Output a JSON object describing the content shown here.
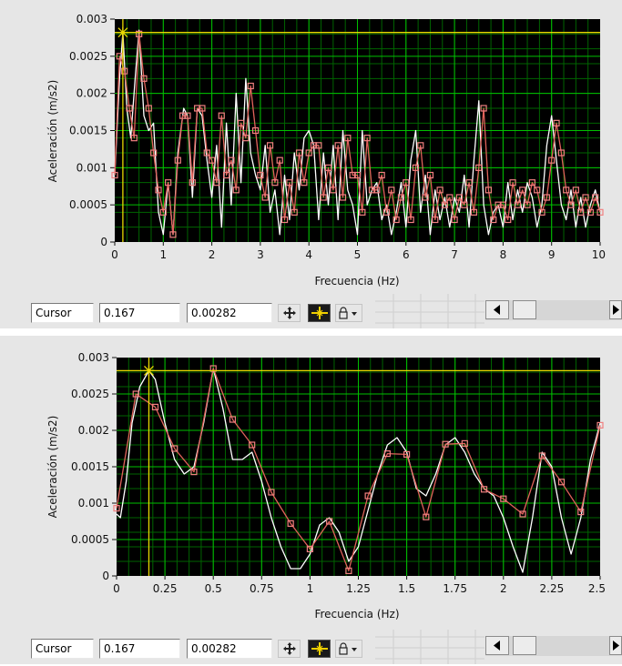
{
  "panels": [
    {
      "ylabel": "Aceleración (m/s2)",
      "xlabel": "Frecuencia (Hz)",
      "y_ticks": [
        "0",
        "0.0005",
        "0.001",
        "0.0015",
        "0.002",
        "0.0025",
        "0.003"
      ],
      "x_ticks": [
        "0",
        "1",
        "2",
        "3",
        "4",
        "5",
        "6",
        "7",
        "8",
        "9",
        "10"
      ],
      "cursor": {
        "label": "Cursor",
        "x_value": "0.167",
        "y_value": "0.00282"
      }
    },
    {
      "ylabel": "Aceleración (m/s2)",
      "xlabel": "Frecuencia (Hz)",
      "y_ticks": [
        "0",
        "0.0005",
        "0.001",
        "0.0015",
        "0.002",
        "0.0025",
        "0.003"
      ],
      "x_ticks": [
        "0",
        "0.25",
        "0.5",
        "0.75",
        "1",
        "1.25",
        "1.5",
        "1.75",
        "2",
        "2.25",
        "2.5"
      ],
      "cursor": {
        "label": "Cursor",
        "x_value": "0.167",
        "y_value": "0.00282"
      }
    }
  ],
  "chart_data": [
    {
      "type": "line",
      "xlabel": "Frecuencia (Hz)",
      "ylabel": "Aceleración (m/s2)",
      "xlim": [
        0,
        10
      ],
      "ylim": [
        0,
        0.003
      ],
      "grid": true,
      "cursor": {
        "x": 0.167,
        "y": 0.00282
      },
      "series": [
        {
          "color": "#ffffff",
          "x": [
            0,
            0.1,
            0.167,
            0.25,
            0.33,
            0.42,
            0.5,
            0.6,
            0.7,
            0.8,
            0.9,
            1,
            1.1,
            1.2,
            1.3,
            1.42,
            1.5,
            1.6,
            1.7,
            1.8,
            1.9,
            2,
            2.1,
            2.2,
            2.3,
            2.4,
            2.5,
            2.6,
            2.7,
            2.8,
            2.9,
            3,
            3.1,
            3.2,
            3.3,
            3.4,
            3.5,
            3.6,
            3.7,
            3.8,
            3.9,
            4,
            4.1,
            4.2,
            4.3,
            4.4,
            4.5,
            4.6,
            4.7,
            4.8,
            4.9,
            5,
            5.1,
            5.2,
            5.3,
            5.4,
            5.5,
            5.6,
            5.7,
            5.8,
            5.9,
            6,
            6.1,
            6.2,
            6.3,
            6.4,
            6.5,
            6.6,
            6.7,
            6.8,
            6.9,
            7,
            7.1,
            7.2,
            7.3,
            7.4,
            7.5,
            7.6,
            7.7,
            7.8,
            7.9,
            8,
            8.1,
            8.2,
            8.3,
            8.4,
            8.5,
            8.6,
            8.7,
            8.8,
            8.9,
            9,
            9.1,
            9.2,
            9.3,
            9.4,
            9.5,
            9.6,
            9.7,
            9.8,
            9.9,
            10
          ],
          "y": [
            0.0009,
            0.0022,
            0.00282,
            0.0018,
            0.0014,
            0.0022,
            0.00285,
            0.0017,
            0.0015,
            0.0016,
            0.0004,
            0.0001,
            0.0008,
            0.0001,
            0.0012,
            0.0018,
            0.0017,
            0.0006,
            0.0018,
            0.0017,
            0.0011,
            0.0006,
            0.0013,
            0.0002,
            0.0016,
            0.0005,
            0.002,
            0.0008,
            0.0022,
            0.0012,
            0.0009,
            0.0007,
            0.0013,
            0.0004,
            0.0007,
            0.0001,
            0.0009,
            0.0003,
            0.0012,
            0.0007,
            0.0014,
            0.0015,
            0.0013,
            0.0003,
            0.0012,
            0.0005,
            0.0013,
            0.0003,
            0.0015,
            0.0007,
            0.0005,
            0.0001,
            0.0015,
            0.0005,
            0.0007,
            0.0008,
            0.0003,
            0.0005,
            0.0001,
            0.0004,
            0.0008,
            0.0002,
            0.0011,
            0.0015,
            0.0004,
            0.0009,
            0.0001,
            0.0007,
            0.0003,
            0.0006,
            0.0002,
            0.0006,
            0.0004,
            0.0009,
            0.0002,
            0.0011,
            0.0019,
            0.0005,
            0.0001,
            0.0004,
            0.0005,
            0.0002,
            0.0008,
            0.0003,
            0.0007,
            0.0004,
            0.0008,
            0.0006,
            0.0002,
            0.0005,
            0.0013,
            0.0017,
            0.0011,
            0.0005,
            0.0003,
            0.0007,
            0.0002,
            0.0006,
            0.0002,
            0.0005,
            0.0007,
            0.0004
          ]
        },
        {
          "color": "#e0625a",
          "x": [
            0,
            0.1,
            0.2,
            0.3,
            0.4,
            0.5,
            0.6,
            0.7,
            0.8,
            0.9,
            1,
            1.1,
            1.2,
            1.3,
            1.4,
            1.5,
            1.6,
            1.7,
            1.8,
            1.9,
            2,
            2.1,
            2.2,
            2.3,
            2.4,
            2.5,
            2.6,
            2.7,
            2.8,
            2.9,
            3,
            3.1,
            3.2,
            3.3,
            3.4,
            3.5,
            3.6,
            3.7,
            3.8,
            3.9,
            4,
            4.1,
            4.2,
            4.3,
            4.4,
            4.5,
            4.6,
            4.7,
            4.8,
            4.9,
            5,
            5.1,
            5.2,
            5.3,
            5.4,
            5.5,
            5.6,
            5.7,
            5.8,
            5.9,
            6,
            6.1,
            6.2,
            6.3,
            6.4,
            6.5,
            6.6,
            6.7,
            6.8,
            6.9,
            7,
            7.1,
            7.2,
            7.3,
            7.4,
            7.5,
            7.6,
            7.7,
            7.8,
            7.9,
            8,
            8.1,
            8.2,
            8.3,
            8.4,
            8.5,
            8.6,
            8.7,
            8.8,
            8.9,
            9,
            9.1,
            9.2,
            9.3,
            9.4,
            9.5,
            9.6,
            9.7,
            9.8,
            9.9,
            10
          ],
          "y": [
            0.0009,
            0.0025,
            0.0023,
            0.0018,
            0.0014,
            0.0028,
            0.0022,
            0.0018,
            0.0012,
            0.0007,
            0.0004,
            0.0008,
            0.0001,
            0.0011,
            0.0017,
            0.0017,
            0.0008,
            0.0018,
            0.0018,
            0.0012,
            0.0011,
            0.0008,
            0.0017,
            0.0009,
            0.0011,
            0.0007,
            0.0016,
            0.0014,
            0.0021,
            0.0015,
            0.0009,
            0.0006,
            0.0013,
            0.0008,
            0.0011,
            0.0003,
            0.0008,
            0.0004,
            0.0012,
            0.0008,
            0.0012,
            0.0013,
            0.0013,
            0.0006,
            0.001,
            0.0007,
            0.0013,
            0.0006,
            0.0014,
            0.0009,
            0.0009,
            0.0004,
            0.0014,
            0.0007,
            0.0007,
            0.0009,
            0.0004,
            0.0007,
            0.0003,
            0.0006,
            0.0008,
            0.0003,
            0.001,
            0.0013,
            0.0006,
            0.0009,
            0.0003,
            0.0007,
            0.0005,
            0.0006,
            0.0003,
            0.0006,
            0.0005,
            0.0008,
            0.0004,
            0.001,
            0.0018,
            0.0007,
            0.0003,
            0.0005,
            0.0005,
            0.0003,
            0.0008,
            0.0005,
            0.0007,
            0.0005,
            0.0008,
            0.0007,
            0.0004,
            0.0006,
            0.0011,
            0.0016,
            0.0012,
            0.0007,
            0.0005,
            0.0007,
            0.0004,
            0.0006,
            0.0004,
            0.0006,
            0.0004
          ]
        }
      ]
    },
    {
      "type": "line",
      "xlabel": "Frecuencia (Hz)",
      "ylabel": "Aceleración (m/s2)",
      "xlim": [
        0,
        2.5
      ],
      "ylim": [
        0,
        0.003
      ],
      "grid": true,
      "cursor": {
        "x": 0.167,
        "y": 0.00282
      },
      "series": [
        {
          "color": "#ffffff",
          "x": [
            0,
            0.02,
            0.05,
            0.08,
            0.12,
            0.167,
            0.2,
            0.25,
            0.3,
            0.35,
            0.4,
            0.45,
            0.5,
            0.55,
            0.6,
            0.65,
            0.7,
            0.75,
            0.8,
            0.85,
            0.9,
            0.95,
            1,
            1.05,
            1.1,
            1.15,
            1.2,
            1.25,
            1.3,
            1.35,
            1.4,
            1.45,
            1.5,
            1.55,
            1.6,
            1.65,
            1.7,
            1.75,
            1.8,
            1.85,
            1.9,
            1.95,
            2,
            2.05,
            2.1,
            2.15,
            2.2,
            2.25,
            2.3,
            2.35,
            2.4,
            2.45,
            2.5
          ],
          "y": [
            0.00085,
            0.0008,
            0.0013,
            0.0021,
            0.0026,
            0.00282,
            0.0027,
            0.0021,
            0.0016,
            0.0014,
            0.0015,
            0.0021,
            0.00285,
            0.0023,
            0.0016,
            0.0016,
            0.0017,
            0.0013,
            0.0008,
            0.0004,
            0.0001,
            0.0001,
            0.0003,
            0.0007,
            0.0008,
            0.0006,
            0.0002,
            0.0004,
            0.0009,
            0.0014,
            0.0018,
            0.0019,
            0.0017,
            0.0012,
            0.0011,
            0.0014,
            0.0018,
            0.0019,
            0.0017,
            0.0014,
            0.0012,
            0.0011,
            0.0008,
            0.0004,
            5e-05,
            0.0008,
            0.0017,
            0.0015,
            0.0008,
            0.0003,
            0.0008,
            0.0016,
            0.0021
          ]
        },
        {
          "color": "#e0625a",
          "x": [
            0,
            0.1,
            0.2,
            0.3,
            0.4,
            0.5,
            0.6,
            0.7,
            0.8,
            0.9,
            1,
            1.1,
            1.2,
            1.3,
            1.4,
            1.5,
            1.6,
            1.7,
            1.8,
            1.9,
            2,
            2.1,
            2.2,
            2.3,
            2.4,
            2.5
          ],
          "y": [
            0.00093,
            0.0025,
            0.00232,
            0.00175,
            0.00143,
            0.00285,
            0.00215,
            0.0018,
            0.00115,
            0.00072,
            0.00037,
            0.00075,
            7e-05,
            0.0011,
            0.00168,
            0.00167,
            0.00081,
            0.00181,
            0.00182,
            0.00119,
            0.00106,
            0.00085,
            0.00165,
            0.00129,
            0.00088,
            0.00207
          ]
        }
      ]
    }
  ]
}
